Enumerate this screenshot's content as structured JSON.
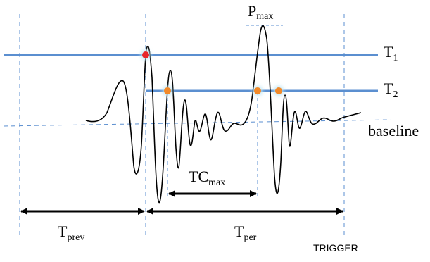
{
  "labels": {
    "pmax": {
      "main": "P",
      "sub": "max"
    },
    "t1": {
      "main": "T",
      "sub": "1"
    },
    "t2": {
      "main": "T",
      "sub": "2"
    },
    "baseline": "baseline",
    "tcmax": {
      "main": "TC",
      "sub": "max"
    },
    "tprev": {
      "main": "T",
      "sub": "prev"
    },
    "tper": {
      "main": "T",
      "sub": "per"
    },
    "trigger": "TRIGGER"
  },
  "colors": {
    "threshold_line": "#5b8fd0",
    "guide_dashed": "#5b8fd0",
    "signal": "#000000",
    "arrow": "#000000",
    "crossing_t1": "#e8262a",
    "crossing_t2": "#f28a2a",
    "glow": "#bfe6f5"
  }
}
